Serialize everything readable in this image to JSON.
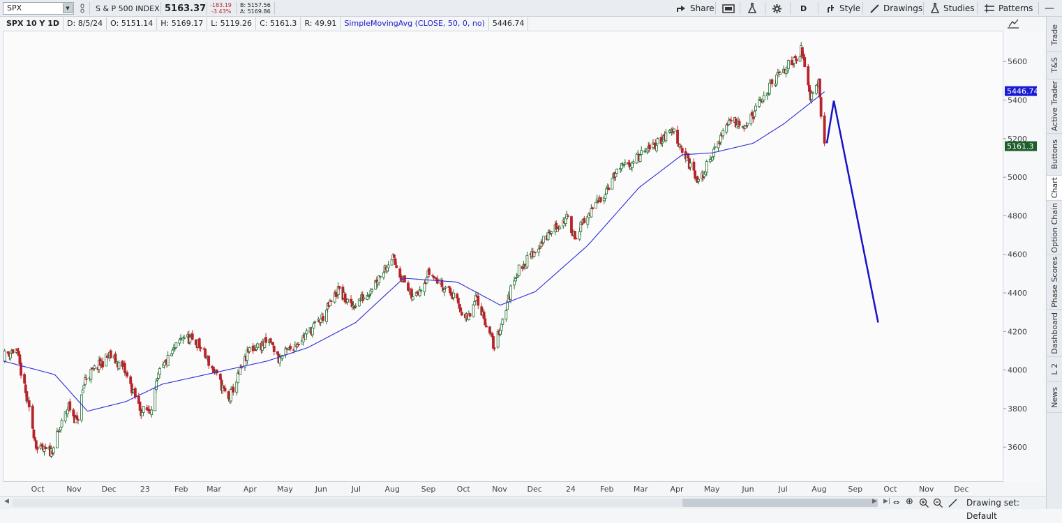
{
  "toolbar": {
    "symbol": "SPX",
    "index_name": "S & P 500 INDEX",
    "last_price": "5163.37",
    "net_change": "-183.19",
    "pct_change": "-3.43%",
    "bid": "B: 5157.56",
    "ask": "A: 5169.86",
    "share_label": "Share",
    "aggregation": "D",
    "style_label": "Style",
    "drawings_label": "Drawings",
    "studies_label": "Studies",
    "patterns_label": "Patterns"
  },
  "infobar": {
    "title": "SPX 10 Y 1D",
    "date": "D: 8/5/24",
    "open": "O: 5151.14",
    "high": "H: 5169.17",
    "low": "L: 5119.26",
    "close": "C: 5161.3",
    "range": "R: 49.91",
    "study": "SimpleMovingAvg (CLOSE, 50, 0, no)",
    "study_value": "5446.74"
  },
  "sidebar": {
    "tabs": [
      "Trade",
      "T&S",
      "Active Trader",
      "Buttons",
      "Chart",
      "Option Chain",
      "Phase Scores",
      "Dashboard",
      "L 2",
      "News"
    ],
    "active": "Chart"
  },
  "bottom": {
    "drawing_set": "Drawing set: Default"
  },
  "colors": {
    "up": "#1e6b2e",
    "down": "#b8242a",
    "sma": "#2a2ad8",
    "drawing": "#1414c8"
  },
  "chart_data": {
    "type": "candlestick",
    "symbol": "SPX",
    "ylim": [
      3420,
      5760
    ],
    "y_ticks": [
      3600,
      3800,
      4000,
      4200,
      4400,
      4600,
      4800,
      5000,
      5200,
      5400,
      5600
    ],
    "x_labels": [
      "Oct",
      "Nov",
      "Dec",
      "23",
      "Feb",
      "Mar",
      "Apr",
      "May",
      "Jun",
      "Jul",
      "Aug",
      "Sep",
      "Oct",
      "Nov",
      "Dec",
      "24",
      "Feb",
      "Mar",
      "Apr",
      "May",
      "Jun",
      "Jul",
      "Aug",
      "Sep",
      "Oct",
      "Nov",
      "Dec"
    ],
    "price_path": [
      [
        "2022-09-01",
        4080
      ],
      [
        "2022-09-12",
        4110
      ],
      [
        "2022-09-30",
        3590
      ],
      [
        "2022-10-12",
        3580
      ],
      [
        "2022-10-27",
        3820
      ],
      [
        "2022-11-03",
        3730
      ],
      [
        "2022-11-10",
        3960
      ],
      [
        "2022-12-01",
        4080
      ],
      [
        "2022-12-13",
        4010
      ],
      [
        "2022-12-28",
        3790
      ],
      [
        "2023-01-05",
        3800
      ],
      [
        "2023-01-13",
        3990
      ],
      [
        "2023-02-02",
        4180
      ],
      [
        "2023-02-15",
        4140
      ],
      [
        "2023-03-02",
        3980
      ],
      [
        "2023-03-13",
        3850
      ],
      [
        "2023-03-31",
        4110
      ],
      [
        "2023-04-18",
        4150
      ],
      [
        "2023-04-25",
        4060
      ],
      [
        "2023-05-19",
        4190
      ],
      [
        "2023-06-02",
        4280
      ],
      [
        "2023-06-15",
        4420
      ],
      [
        "2023-06-26",
        4330
      ],
      [
        "2023-07-10",
        4400
      ],
      [
        "2023-07-31",
        4590
      ],
      [
        "2023-08-18",
        4370
      ],
      [
        "2023-09-01",
        4510
      ],
      [
        "2023-09-20",
        4400
      ],
      [
        "2023-10-04",
        4260
      ],
      [
        "2023-10-12",
        4380
      ],
      [
        "2023-10-27",
        4120
      ],
      [
        "2023-11-14",
        4500
      ],
      [
        "2023-12-14",
        4720
      ],
      [
        "2023-12-28",
        4790
      ],
      [
        "2024-01-04",
        4700
      ],
      [
        "2024-01-22",
        4860
      ],
      [
        "2024-02-09",
        5030
      ],
      [
        "2024-03-08",
        5150
      ],
      [
        "2024-03-28",
        5250
      ],
      [
        "2024-04-19",
        4970
      ],
      [
        "2024-05-15",
        5300
      ],
      [
        "2024-05-31",
        5280
      ],
      [
        "2024-06-20",
        5480
      ],
      [
        "2024-07-16",
        5660
      ],
      [
        "2024-07-24",
        5430
      ],
      [
        "2024-07-31",
        5520
      ],
      [
        "2024-08-02",
        5340
      ],
      [
        "2024-08-05",
        5161
      ]
    ],
    "sma_50_path": [
      [
        "2022-09-01",
        4050
      ],
      [
        "2022-10-15",
        3980
      ],
      [
        "2022-11-12",
        3790
      ],
      [
        "2022-12-15",
        3840
      ],
      [
        "2023-01-15",
        3930
      ],
      [
        "2023-03-01",
        3990
      ],
      [
        "2023-04-15",
        4050
      ],
      [
        "2023-05-20",
        4120
      ],
      [
        "2023-06-30",
        4250
      ],
      [
        "2023-08-10",
        4480
      ],
      [
        "2023-09-25",
        4460
      ],
      [
        "2023-11-01",
        4340
      ],
      [
        "2023-12-01",
        4410
      ],
      [
        "2024-01-15",
        4650
      ],
      [
        "2024-02-28",
        4950
      ],
      [
        "2024-04-05",
        5120
      ],
      [
        "2024-05-01",
        5130
      ],
      [
        "2024-06-05",
        5180
      ],
      [
        "2024-07-01",
        5280
      ],
      [
        "2024-08-05",
        5446.74
      ]
    ],
    "trendline_drawing": [
      [
        "2024-08-07",
        5180
      ],
      [
        "2024-08-13",
        5400
      ],
      [
        "2024-09-20",
        4250
      ]
    ],
    "price_badges": [
      {
        "label": "5446.74",
        "series": "SMA"
      },
      {
        "label": "5161.3",
        "series": "Close"
      }
    ]
  }
}
